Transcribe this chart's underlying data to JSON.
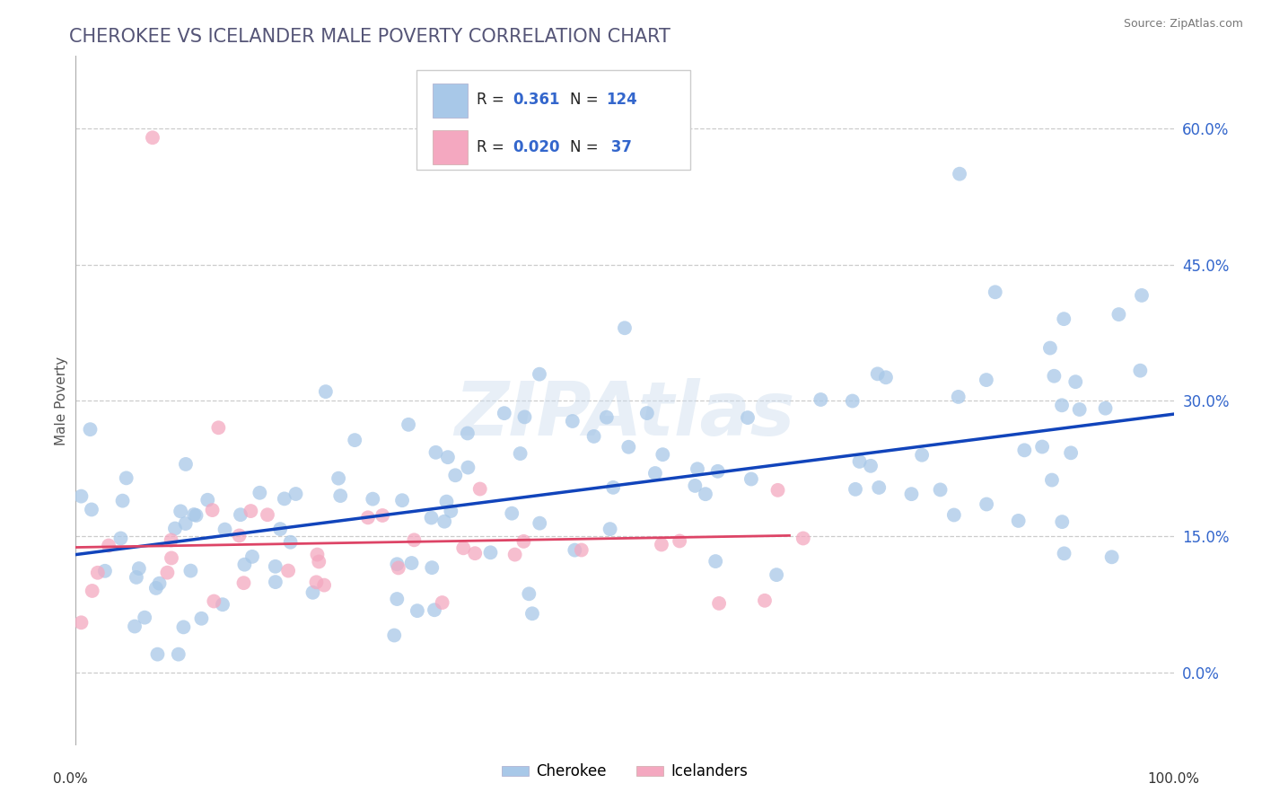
{
  "title": "CHEROKEE VS ICELANDER MALE POVERTY CORRELATION CHART",
  "source": "Source: ZipAtlas.com",
  "ylabel": "Male Poverty",
  "y_tick_values": [
    0.0,
    15.0,
    30.0,
    45.0,
    60.0
  ],
  "xlim": [
    0.0,
    100.0
  ],
  "ylim": [
    -8.0,
    68.0
  ],
  "cherokee_R": 0.361,
  "cherokee_N": 124,
  "icelander_R": 0.02,
  "icelander_N": 37,
  "cherokee_color": "#a8c8e8",
  "icelander_color": "#f4a8c0",
  "cherokee_line_color": "#1144bb",
  "icelander_line_color": "#dd4466",
  "title_color": "#555577",
  "title_fontsize": 15,
  "watermark": "ZIPAtlas",
  "right_label_color": "#3366cc"
}
